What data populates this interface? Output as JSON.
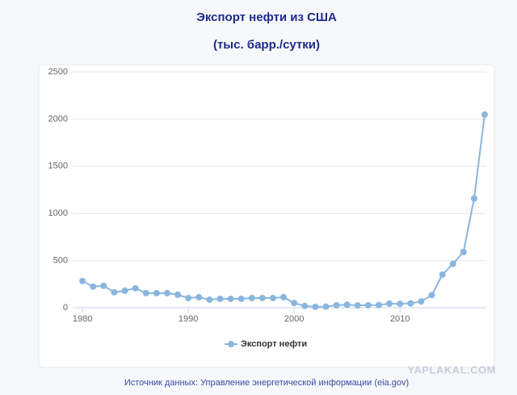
{
  "chart_data": {
    "type": "line",
    "title": "Экспорт нефти из США",
    "subtitle": "(тыс. барр./сутки)",
    "x": [
      1980,
      1981,
      1982,
      1983,
      1984,
      1985,
      1986,
      1987,
      1988,
      1989,
      1990,
      1991,
      1992,
      1993,
      1994,
      1995,
      1996,
      1997,
      1998,
      1999,
      2000,
      2001,
      2002,
      2003,
      2004,
      2005,
      2006,
      2007,
      2008,
      2009,
      2010,
      2011,
      2012,
      2013,
      2014,
      2015,
      2016,
      2017,
      2018
    ],
    "series": [
      {
        "name": "Экспорт нефти",
        "color": "#8ab6de",
        "values": [
          284,
          224,
          233,
          164,
          181,
          207,
          155,
          155,
          155,
          138,
          103,
          112,
          86,
          95,
          95,
          95,
          103,
          103,
          103,
          112,
          50,
          20,
          10,
          12,
          27,
          32,
          25,
          27,
          29,
          44,
          42,
          47,
          67,
          134,
          351,
          465,
          591,
          1158,
          2048
        ]
      }
    ],
    "xlim": [
      1979,
      2018
    ],
    "xticks": [
      1980,
      1990,
      2000,
      2010
    ],
    "ylim": [
      0,
      2500
    ],
    "yticks": [
      0,
      500,
      1000,
      1500,
      2000,
      2500
    ],
    "grid": true,
    "legend": "bottom",
    "source": "Источник данных: Управление энергетической информации (eia.gov)",
    "watermark": "YAPLAKAL.COM"
  }
}
